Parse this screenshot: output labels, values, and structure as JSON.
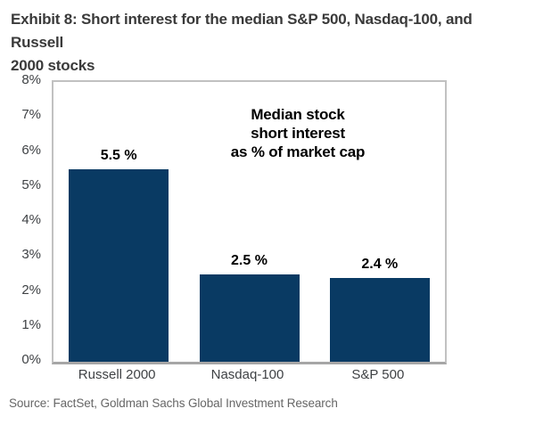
{
  "header": {
    "exhibit_title_lines": [
      "Exhibit 8: Short interest for the median S&P 500, Nasdaq-100, and Russell",
      "2000 stocks"
    ]
  },
  "chart_data": {
    "type": "bar",
    "title": "Median stock short interest as % of market cap",
    "annotation_lines": [
      "Median stock",
      "short interest",
      "as % of market cap"
    ],
    "categories": [
      "Russell 2000",
      "Nasdaq-100",
      "S&P 500"
    ],
    "values": [
      5.5,
      2.5,
      2.4
    ],
    "bar_labels": [
      "5.5 %",
      "2.5 %",
      "2.4 %"
    ],
    "xlabel": "",
    "ylabel": "",
    "ylim": [
      0,
      8
    ],
    "y_tick_labels": [
      "8%",
      "7%",
      "6%",
      "5%",
      "4%",
      "3%",
      "2%",
      "1%",
      "0%"
    ],
    "grid": false,
    "legend": "none",
    "bar_color": "#093a63",
    "frame_color": "#c1c1c1",
    "axis_color": "#a6a6a6"
  },
  "footer": {
    "source": "Source: FactSet, Goldman Sachs Global Investment Research"
  }
}
